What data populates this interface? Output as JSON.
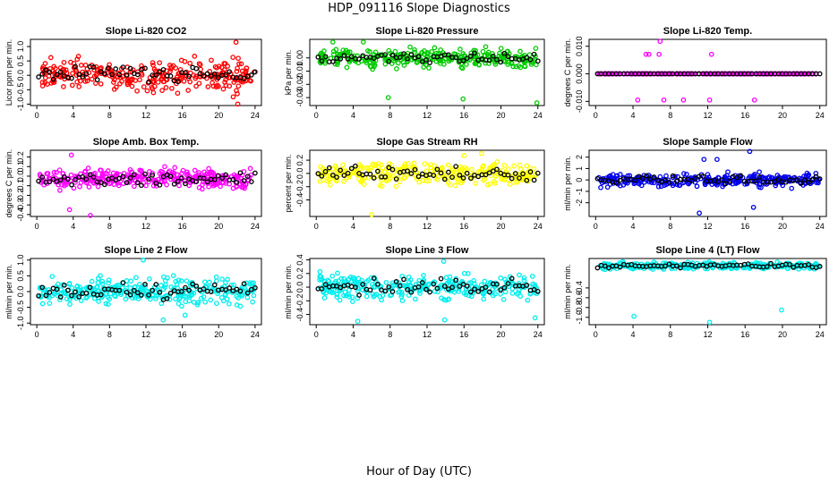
{
  "figure": {
    "title": "HDP_091116  Slope Diagnostics",
    "xlabel": "Hour of Day (UTC)"
  },
  "chart_data": [
    {
      "type": "scatter",
      "title": "Slope Li-820 CO2",
      "ylabel": "Licor ppm per min.",
      "color": "#ff0000",
      "xlim": [
        -0.7,
        24.7
      ],
      "xticks": [
        0,
        4,
        8,
        12,
        16,
        20,
        24
      ],
      "ylim": [
        -1.05,
        1.25
      ],
      "yticks": [
        -1.0,
        -0.5,
        0.0,
        0.5,
        1.0
      ],
      "ytick_labels": [
        "-1.0",
        "-0.5",
        "0.0",
        "0.5",
        "1.0"
      ],
      "center": 0.0,
      "spread": 0.3,
      "extra_points": [
        [
          21.9,
          1.15
        ],
        [
          22.1,
          -1.0
        ],
        [
          21.6,
          -0.75
        ]
      ]
    },
    {
      "type": "scatter",
      "title": "Slope Li-820 Pressure",
      "ylabel": "kPa per min.",
      "color": "#00cc00",
      "xlim": [
        -0.7,
        24.7
      ],
      "xticks": [
        0,
        4,
        8,
        12,
        16,
        20,
        24
      ],
      "ylim": [
        -0.036,
        0.014
      ],
      "yticks": [
        -0.03,
        -0.02,
        -0.01,
        0.0
      ],
      "ytick_labels": [
        "-0.03",
        "-0.02",
        "-0.01",
        "0.00"
      ],
      "center": 0.0,
      "spread": 0.004,
      "extra_points": [
        [
          7.8,
          -0.03
        ],
        [
          15.9,
          -0.031
        ],
        [
          23.9,
          -0.034
        ],
        [
          5.1,
          0.012
        ],
        [
          1.8,
          0.012
        ]
      ]
    },
    {
      "type": "scatter",
      "title": "Slope Li-820 Temp.",
      "ylabel": "degrees C per min.",
      "color": "#ff00ff",
      "xlim": [
        -0.7,
        24.7
      ],
      "xticks": [
        0,
        4,
        8,
        12,
        16,
        20,
        24
      ],
      "ylim": [
        -0.0115,
        0.0125
      ],
      "yticks": [
        -0.01,
        0.0,
        0.01
      ],
      "ytick_labels": [
        "-0.010",
        "0.000",
        "0.010"
      ],
      "center": 0.0,
      "spread": 0.0,
      "extra_points": [
        [
          5.4,
          0.0071
        ],
        [
          5.7,
          0.0071
        ],
        [
          6.8,
          0.0071
        ],
        [
          12.4,
          0.0071
        ],
        [
          4.5,
          -0.0095
        ],
        [
          7.3,
          -0.0095
        ],
        [
          9.4,
          -0.0095
        ],
        [
          12.2,
          -0.0095
        ],
        [
          17.0,
          -0.0095
        ],
        [
          6.9,
          0.0118
        ]
      ]
    },
    {
      "type": "scatter",
      "title": "Slope Amb. Box Temp.",
      "ylabel": "degrees C per min.",
      "color": "#ff00ff",
      "xlim": [
        -0.7,
        24.7
      ],
      "xticks": [
        0,
        4,
        8,
        12,
        16,
        20,
        24
      ],
      "ylim": [
        -0.42,
        0.27
      ],
      "yticks": [
        -0.4,
        -0.3,
        -0.2,
        -0.1,
        0.0,
        0.1,
        0.2
      ],
      "ytick_labels": [
        "-0.4",
        "-0.3",
        "-0.2",
        "-0.1",
        "0.0",
        "0.1",
        "0.2"
      ],
      "center": -0.03,
      "spread": 0.06,
      "extra_points": [
        [
          3.8,
          0.22
        ],
        [
          3.6,
          -0.35
        ],
        [
          5.9,
          -0.41
        ]
      ]
    },
    {
      "type": "scatter",
      "title": "Slope Gas Stream RH",
      "ylabel": "percent per min.",
      "color": "#ffff00",
      "xlim": [
        -0.7,
        24.7
      ],
      "xticks": [
        0,
        4,
        8,
        12,
        16,
        20,
        24
      ],
      "ylim": [
        -0.65,
        0.35
      ],
      "yticks": [
        -0.4,
        -0.2,
        0.0,
        0.2
      ],
      "ytick_labels": [
        "-0.4",
        "-0.2",
        "0.0",
        "0.2"
      ],
      "center": 0.0,
      "spread": 0.1,
      "extra_points": [
        [
          6.0,
          -0.62
        ],
        [
          16.0,
          0.27
        ],
        [
          17.9,
          0.3
        ]
      ]
    },
    {
      "type": "scatter",
      "title": "Slope Sample Flow",
      "ylabel": "ml/min per min.",
      "color": "#0000ee",
      "xlim": [
        -0.7,
        24.7
      ],
      "xticks": [
        0,
        4,
        8,
        12,
        16,
        20,
        24
      ],
      "ylim": [
        -3.2,
        2.6
      ],
      "yticks": [
        -2,
        -1,
        0,
        1,
        2
      ],
      "ytick_labels": [
        "-2",
        "-1",
        "0",
        "1",
        "2"
      ],
      "center": 0.0,
      "spread": 0.35,
      "extra_points": [
        [
          16.5,
          2.5
        ],
        [
          11.6,
          1.8
        ],
        [
          13.0,
          1.8
        ],
        [
          11.1,
          -2.9
        ],
        [
          16.9,
          -2.4
        ]
      ]
    },
    {
      "type": "scatter",
      "title": "Slope Line 2 Flow",
      "ylabel": "ml/min per min.",
      "color": "#00eeee",
      "xlim": [
        -0.7,
        24.7
      ],
      "xticks": [
        0,
        4,
        8,
        12,
        16,
        20,
        24
      ],
      "ylim": [
        -1.05,
        1.05
      ],
      "yticks": [
        -1.0,
        -0.5,
        0.0,
        0.5,
        1.0
      ],
      "ytick_labels": [
        "-1.0",
        "-0.5",
        "0.0",
        "0.5",
        "1.0"
      ],
      "center": 0.0,
      "spread": 0.25,
      "extra_points": [
        [
          13.9,
          -0.9
        ],
        [
          11.7,
          1.0
        ],
        [
          16.3,
          -0.75
        ]
      ]
    },
    {
      "type": "scatter",
      "title": "Slope Line 3 Flow",
      "ylabel": "ml/min per min.",
      "color": "#00eeee",
      "xlim": [
        -0.7,
        24.7
      ],
      "xticks": [
        0,
        4,
        8,
        12,
        16,
        20,
        24
      ],
      "ylim": [
        -0.55,
        0.42
      ],
      "yticks": [
        -0.4,
        -0.2,
        0.0,
        0.2,
        0.4
      ],
      "ytick_labels": [
        "-0.4",
        "-0.2",
        "0.0",
        "0.2",
        "0.4"
      ],
      "center": 0.0,
      "spread": 0.12,
      "extra_points": [
        [
          4.5,
          -0.5
        ],
        [
          13.8,
          0.38
        ],
        [
          23.7,
          -0.45
        ],
        [
          13.9,
          -0.48
        ]
      ]
    },
    {
      "type": "scatter",
      "title": "Slope Line 4 (LT) Flow",
      "ylabel": "ml/min per min.",
      "color": "#00eeee",
      "xlim": [
        -0.7,
        24.7
      ],
      "xticks": [
        0,
        4,
        8,
        12,
        16,
        20,
        24
      ],
      "ylim": [
        -1.15,
        0.2
      ],
      "yticks": [
        -1.0,
        -0.8,
        -0.6,
        -0.4
      ],
      "ytick_labels": [
        "-1.0",
        "-0.8",
        "-0.6",
        "-0.4"
      ],
      "center": 0.05,
      "spread": 0.04,
      "extra_points": [
        [
          4.1,
          -0.98
        ],
        [
          12.2,
          -1.1
        ],
        [
          19.9,
          -0.85
        ]
      ]
    }
  ]
}
